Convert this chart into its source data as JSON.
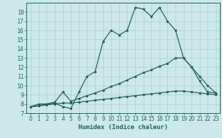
{
  "xlabel": "Humidex (Indice chaleur)",
  "bg_color": "#cce8e8",
  "grid_color": "#aacece",
  "line_color": "#1a6060",
  "x_ticks": [
    0,
    1,
    2,
    3,
    4,
    5,
    6,
    7,
    8,
    9,
    10,
    11,
    12,
    13,
    14,
    15,
    16,
    17,
    18,
    19,
    20,
    21,
    22,
    23
  ],
  "y_ticks": [
    7,
    8,
    9,
    10,
    11,
    12,
    13,
    14,
    15,
    16,
    17,
    18
  ],
  "ylim": [
    7,
    19
  ],
  "xlim": [
    -0.5,
    23.5
  ],
  "curve1_x": [
    0,
    1,
    2,
    3,
    4,
    5,
    6,
    7,
    8,
    9,
    10,
    11,
    12,
    13,
    14,
    15,
    16,
    17,
    18,
    19,
    20,
    21,
    22,
    23
  ],
  "curve1_y": [
    7.7,
    8.0,
    8.0,
    8.1,
    7.7,
    7.5,
    9.3,
    11.0,
    11.5,
    14.8,
    16.0,
    15.5,
    16.0,
    18.5,
    18.3,
    17.5,
    18.5,
    17.0,
    16.0,
    13.0,
    12.0,
    11.0,
    10.0,
    9.2
  ],
  "curve2_x": [
    0,
    1,
    2,
    3,
    4,
    5,
    6,
    7,
    8,
    9,
    10,
    11,
    12,
    13,
    14,
    15,
    16,
    17,
    18,
    19,
    20,
    21,
    22,
    23
  ],
  "curve2_y": [
    7.7,
    7.8,
    8.0,
    8.2,
    9.3,
    8.3,
    8.6,
    8.9,
    9.2,
    9.5,
    9.9,
    10.2,
    10.6,
    11.0,
    11.4,
    11.7,
    12.1,
    12.4,
    13.0,
    13.0,
    12.0,
    10.5,
    9.3,
    9.2
  ],
  "curve3_x": [
    0,
    1,
    2,
    3,
    4,
    5,
    6,
    7,
    8,
    9,
    10,
    11,
    12,
    13,
    14,
    15,
    16,
    17,
    18,
    19,
    20,
    21,
    22,
    23
  ],
  "curve3_y": [
    7.7,
    7.8,
    7.9,
    8.0,
    8.1,
    8.1,
    8.2,
    8.3,
    8.4,
    8.5,
    8.6,
    8.7,
    8.8,
    8.9,
    9.0,
    9.1,
    9.2,
    9.3,
    9.4,
    9.4,
    9.3,
    9.2,
    9.1,
    9.0
  ]
}
